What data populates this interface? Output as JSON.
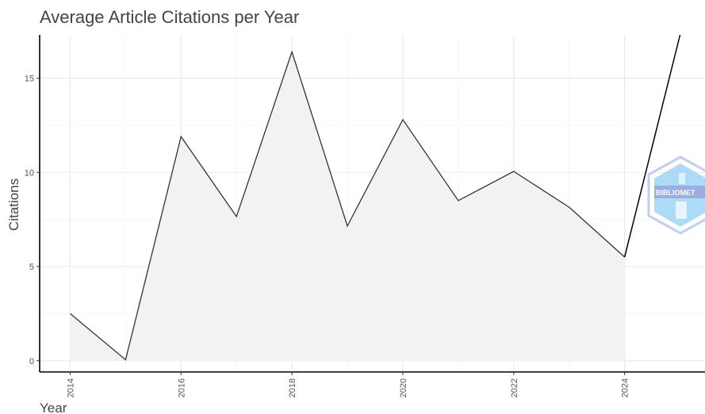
{
  "chart_data": {
    "type": "area",
    "title": "Average Article Citations per Year",
    "xlabel": "Year",
    "ylabel": "Citations",
    "x": [
      2014,
      2015,
      2016,
      2017,
      2018,
      2019,
      2020,
      2021,
      2022,
      2023,
      2024,
      2025
    ],
    "y": [
      2.5,
      0.05,
      11.9,
      7.65,
      16.4,
      7.15,
      12.8,
      8.5,
      10.05,
      8.15,
      5.5,
      17.3
    ],
    "xlim": [
      2013.45,
      2025.45
    ],
    "ylim": [
      -0.6,
      17.3
    ],
    "x_ticks": [
      2014,
      2016,
      2018,
      2020,
      2022,
      2024
    ],
    "x_tick_labels": [
      "2014",
      "2016",
      "2018",
      "2020",
      "2022",
      "2024"
    ],
    "y_ticks": [
      0,
      5,
      10,
      15
    ],
    "y_tick_labels": [
      "0",
      "5",
      "10",
      "15"
    ],
    "grid": true,
    "area_color": "#f2f2f2",
    "line_color": "#333333"
  },
  "watermark": {
    "text": "BIBLIOMET",
    "icon": "bibliometrix-hexagon-logo",
    "colors": [
      "#a8b8e8",
      "#7ec8f0"
    ]
  }
}
